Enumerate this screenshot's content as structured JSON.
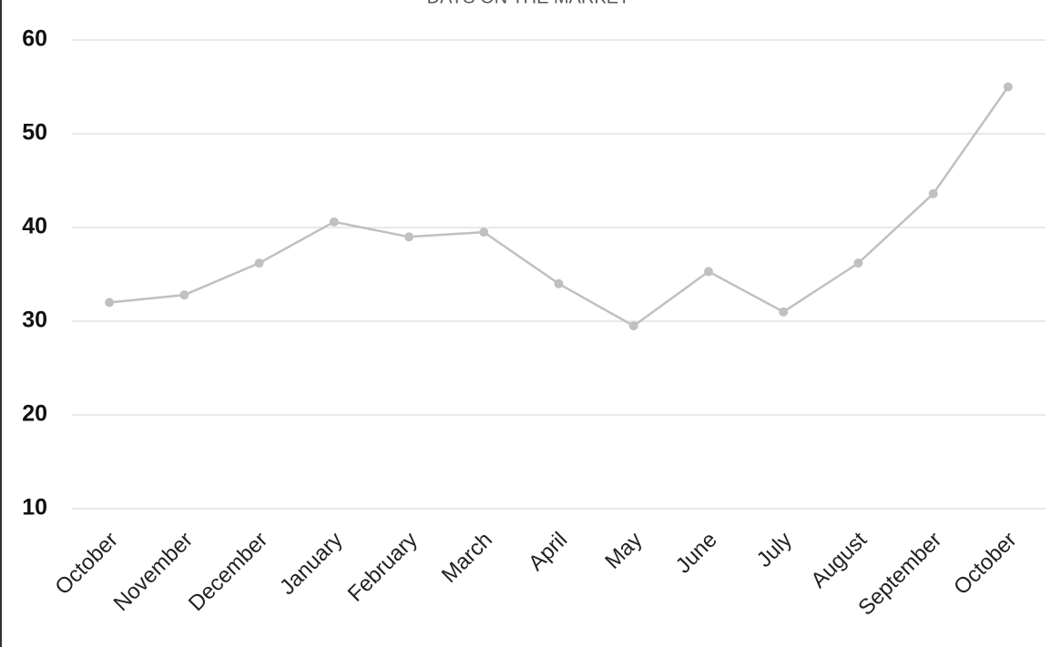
{
  "chart_data": {
    "type": "line",
    "title": "DAYS ON THE MARKET",
    "categories": [
      "October",
      "November",
      "December",
      "January",
      "February",
      "March",
      "April",
      "May",
      "June",
      "July",
      "August",
      "September",
      "October"
    ],
    "values": [
      32.0,
      32.8,
      36.2,
      40.6,
      39.0,
      39.5,
      34.0,
      29.5,
      35.3,
      31.0,
      36.2,
      43.6,
      55.0
    ],
    "color": "#c0c0c0",
    "ylim": [
      10,
      60
    ],
    "yticks": [
      10,
      20,
      30,
      40,
      50,
      60
    ],
    "grid": true
  }
}
